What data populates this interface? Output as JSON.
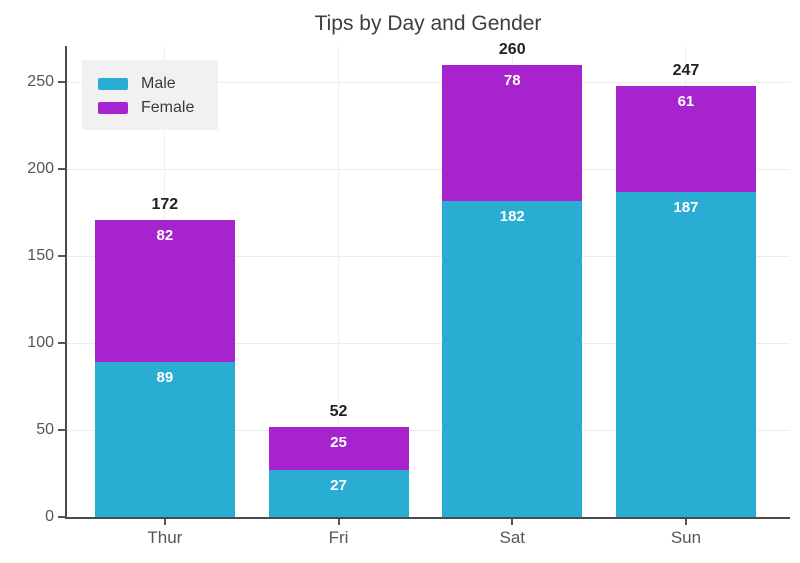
{
  "chart_data": {
    "type": "bar",
    "stacked": true,
    "title": "Tips by Day and Gender",
    "categories": [
      "Thur",
      "Fri",
      "Sat",
      "Sun"
    ],
    "series": [
      {
        "name": "Male",
        "color": "#29ADD2",
        "values": [
          89,
          27,
          182,
          187
        ]
      },
      {
        "name": "Female",
        "color": "#A623CE",
        "values": [
          82,
          25,
          78,
          61
        ]
      }
    ],
    "totals": [
      172,
      52,
      260,
      247
    ],
    "yticks": [
      0,
      50,
      100,
      150,
      200,
      250
    ],
    "ylim": [
      0,
      271
    ],
    "xlabel": "",
    "ylabel": "",
    "grid": true,
    "legend_position": "top-left",
    "value_label_color": "#ffffff",
    "total_label_color": "#222222"
  }
}
